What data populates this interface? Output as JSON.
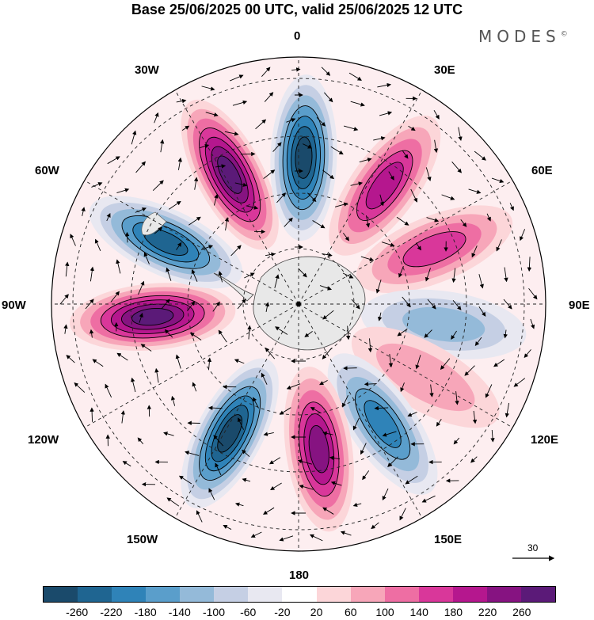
{
  "title": "Base 25/06/2025 00 UTC, valid 25/06/2025 12 UTC",
  "brand": "MODES",
  "brand_mark": "©",
  "longitude_labels": {
    "n0": "0",
    "e30": "30E",
    "e60": "60E",
    "e90": "90E",
    "e120": "120E",
    "e150": "150E",
    "s180": "180",
    "w150": "150W",
    "w120": "120W",
    "w90": "90W",
    "w60": "60W",
    "w30": "30W"
  },
  "reference_vector": {
    "value": "30"
  },
  "colorbar": {
    "colors": [
      "#1a4a6b",
      "#1f6591",
      "#2f83b8",
      "#5a9ecb",
      "#94bad9",
      "#c5cfe4",
      "#e8e8f1",
      "#ffffff",
      "#fcd6d9",
      "#f7a6b9",
      "#ee6ea3",
      "#d9379a",
      "#b5178e",
      "#861381",
      "#5b1a78"
    ],
    "ticks": [
      "-260",
      "-220",
      "-180",
      "-140",
      "-100",
      "-60",
      "-20",
      "20",
      "60",
      "100",
      "140",
      "180",
      "220",
      "260"
    ]
  },
  "anomaly_lobes": [
    {
      "lon": -28,
      "sign": "positive",
      "level": 7
    },
    {
      "lon": 2,
      "sign": "negative",
      "level": 7
    },
    {
      "lon": 36,
      "sign": "positive",
      "level": 5
    },
    {
      "lon": 68,
      "sign": "positive",
      "level": 4
    },
    {
      "lon": 98,
      "sign": "negative",
      "level": 3
    },
    {
      "lon": 120,
      "sign": "positive",
      "level": 2
    },
    {
      "lon": 145,
      "sign": "negative",
      "level": 5
    },
    {
      "lon": 172,
      "sign": "positive",
      "level": 6
    },
    {
      "lon": -152,
      "sign": "negative",
      "level": 7
    },
    {
      "lon": -95,
      "sign": "positive",
      "level": 7
    },
    {
      "lon": -65,
      "sign": "negative",
      "level": 6
    }
  ]
}
